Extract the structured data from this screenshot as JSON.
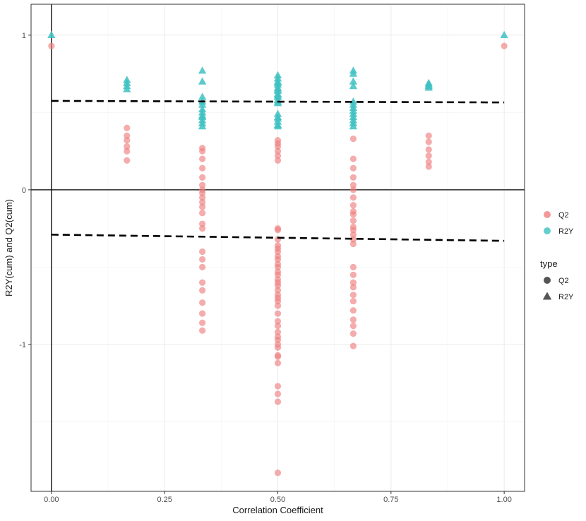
{
  "chart_data": {
    "type": "scatter",
    "title": "",
    "xlabel": "Correlation Coefficient",
    "ylabel": "R2Y(cum) and Q2(cum)",
    "xlim": [
      -0.045,
      1.045
    ],
    "ylim": [
      -1.95,
      1.2
    ],
    "x_ticks": [
      0,
      0.25,
      0.5,
      0.75,
      1.0
    ],
    "x_tick_labels": [
      "0.00",
      "0.25",
      "0.50",
      "0.75",
      "1.00"
    ],
    "y_ticks": [
      -1,
      0,
      1
    ],
    "y_tick_labels": [
      "-1",
      "0",
      "1"
    ],
    "grid": true,
    "reference_lines": [
      {
        "type": "hline",
        "y": 0,
        "style": "solid"
      },
      {
        "type": "vline",
        "x": 0,
        "style": "solid"
      }
    ],
    "regression_lines": [
      {
        "series": "R2Y",
        "x": [
          0,
          1
        ],
        "y": [
          0.575,
          0.565
        ],
        "style": "dashed"
      },
      {
        "series": "Q2",
        "x": [
          0,
          1
        ],
        "y": [
          -0.29,
          -0.33
        ],
        "style": "dashed"
      }
    ],
    "series": [
      {
        "name": "Q2",
        "color": "#F08080",
        "shape": "circle",
        "x": [
          0,
          0.1667,
          0.1667,
          0.1667,
          0.1667,
          0.1667,
          0.1667,
          0.3333,
          0.3333,
          0.3333,
          0.3333,
          0.3333,
          0.3333,
          0.3333,
          0.3333,
          0.3333,
          0.3333,
          0.3333,
          0.3333,
          0.3333,
          0.3333,
          0.3333,
          0.3333,
          0.3333,
          0.3333,
          0.3333,
          0.3333,
          0.3333,
          0.3333,
          0.3333,
          0.5,
          0.5,
          0.5,
          0.5,
          0.5,
          0.5,
          0.5,
          0.5,
          0.5,
          0.5,
          0.5,
          0.5,
          0.5,
          0.5,
          0.5,
          0.5,
          0.5,
          0.5,
          0.5,
          0.5,
          0.5,
          0.5,
          0.5,
          0.5,
          0.5,
          0.5,
          0.5,
          0.5,
          0.5,
          0.5,
          0.5,
          0.5,
          0.5,
          0.5,
          0.5,
          0.5,
          0.5,
          0.5,
          0.5,
          0.5,
          0.5,
          0.6667,
          0.6667,
          0.6667,
          0.6667,
          0.6667,
          0.6667,
          0.6667,
          0.6667,
          0.6667,
          0.6667,
          0.6667,
          0.6667,
          0.6667,
          0.6667,
          0.6667,
          0.6667,
          0.6667,
          0.6667,
          0.6667,
          0.6667,
          0.6667,
          0.6667,
          0.6667,
          0.6667,
          0.6667,
          0.6667,
          0.6667,
          0.8333,
          0.8333,
          0.8333,
          0.8333,
          0.8333,
          0.8333,
          1.0
        ],
        "y": [
          0.93,
          0.4,
          0.35,
          0.32,
          0.28,
          0.25,
          0.19,
          0.27,
          0.25,
          0.2,
          0.14,
          0.08,
          0.03,
          0.0,
          -0.02,
          -0.05,
          -0.08,
          -0.11,
          -0.15,
          -0.22,
          -0.25,
          -0.4,
          -0.45,
          -0.5,
          -0.6,
          -0.65,
          -0.73,
          -0.8,
          -0.86,
          -0.91,
          0.32,
          0.3,
          0.28,
          0.25,
          0.22,
          0.19,
          -0.25,
          -0.32,
          -0.4,
          -0.45,
          -0.5,
          -0.55,
          -0.6,
          -0.65,
          -0.7,
          -0.75,
          -0.8,
          -0.85,
          -0.92,
          -0.97,
          -1.02,
          -1.07,
          -1.12,
          -1.27,
          -1.32,
          -1.37,
          -1.83,
          -0.26,
          -0.38,
          -0.48,
          -0.58,
          -0.62,
          -0.68,
          -0.72,
          -0.88,
          -0.95,
          -1.0,
          -1.08,
          -0.36,
          -0.43,
          -0.53,
          0.33,
          0.2,
          0.14,
          0.08,
          0.03,
          0.0,
          -0.05,
          -0.1,
          -0.14,
          -0.2,
          -0.24,
          -0.29,
          -0.32,
          -0.35,
          -0.5,
          -0.55,
          -0.6,
          -0.63,
          -0.68,
          -0.72,
          -0.78,
          -0.84,
          -0.88,
          -0.93,
          -1.01,
          -0.26,
          -0.16,
          0.35,
          0.31,
          0.26,
          0.22,
          0.18,
          0.15,
          0.93
        ]
      },
      {
        "name": "R2Y",
        "color": "#3EC1C2",
        "shape": "triangle",
        "x": [
          0,
          0.1667,
          0.1667,
          0.1667,
          0.1667,
          0.3333,
          0.3333,
          0.3333,
          0.3333,
          0.3333,
          0.3333,
          0.3333,
          0.3333,
          0.3333,
          0.3333,
          0.3333,
          0.3333,
          0.5,
          0.5,
          0.5,
          0.5,
          0.5,
          0.5,
          0.5,
          0.5,
          0.5,
          0.5,
          0.5,
          0.5,
          0.5,
          0.5,
          0.5,
          0.5,
          0.5,
          0.5,
          0.5,
          0.5,
          0.6667,
          0.6667,
          0.6667,
          0.6667,
          0.6667,
          0.6667,
          0.6667,
          0.6667,
          0.6667,
          0.6667,
          0.6667,
          0.6667,
          0.6667,
          0.8333,
          0.8333,
          0.8333,
          0.8333,
          1.0
        ],
        "y": [
          1.0,
          0.71,
          0.69,
          0.67,
          0.65,
          0.77,
          0.7,
          0.6,
          0.57,
          0.55,
          0.52,
          0.5,
          0.48,
          0.47,
          0.45,
          0.43,
          0.41,
          0.74,
          0.72,
          0.7,
          0.68,
          0.66,
          0.64,
          0.62,
          0.6,
          0.58,
          0.56,
          0.49,
          0.47,
          0.46,
          0.44,
          0.42,
          0.41,
          0.69,
          0.65,
          0.61,
          0.57,
          0.77,
          0.75,
          0.7,
          0.67,
          0.57,
          0.55,
          0.53,
          0.51,
          0.49,
          0.47,
          0.45,
          0.43,
          0.41,
          0.69,
          0.68,
          0.67,
          0.66,
          1.0
        ]
      }
    ],
    "legends": [
      {
        "title": "",
        "position": "right",
        "entries": [
          {
            "label": "Q2",
            "color": "#F08080",
            "shape": "circle"
          },
          {
            "label": "R2Y",
            "color": "#3EC1C2",
            "shape": "circle"
          }
        ]
      },
      {
        "title": "type",
        "position": "right",
        "entries": [
          {
            "label": "Q2",
            "color": "#555555",
            "shape": "circle"
          },
          {
            "label": "R2Y",
            "color": "#555555",
            "shape": "triangle"
          }
        ]
      }
    ]
  }
}
